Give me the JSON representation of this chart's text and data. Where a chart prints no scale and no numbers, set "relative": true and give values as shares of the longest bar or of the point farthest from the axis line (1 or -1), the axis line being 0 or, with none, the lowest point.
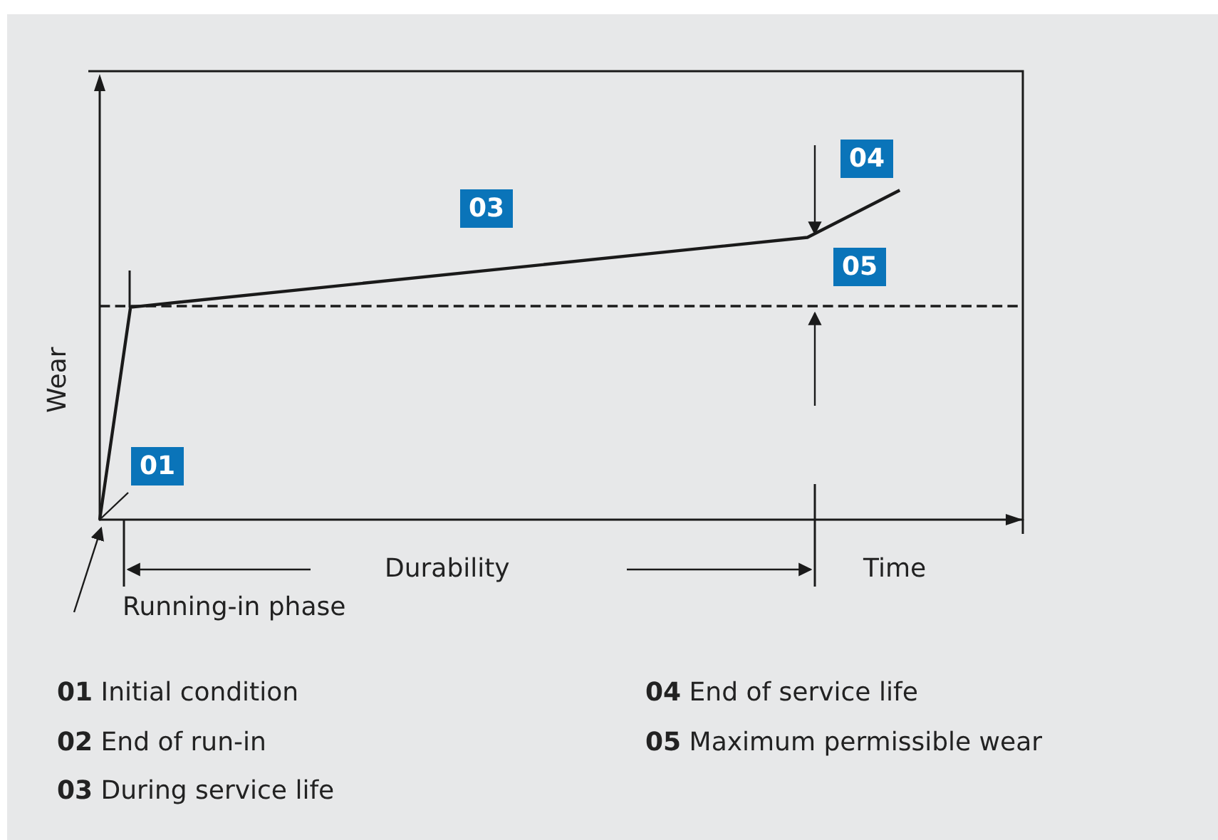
{
  "chart_data": {
    "type": "line",
    "relative": true,
    "xlabel": "Time",
    "ylabel": "Wear",
    "categories": [
      null,
      null,
      null,
      null,
      null,
      null,
      null,
      null,
      null,
      null,
      null,
      null,
      null,
      null,
      null,
      null,
      null,
      null,
      null,
      null,
      null,
      null,
      null,
      null,
      null,
      null,
      null,
      null,
      null,
      null,
      null
    ],
    "series": [
      {
        "color": "#1a1a1a",
        "values": [
          0,
          0.645,
          null,
          null,
          null,
          null,
          null,
          null,
          null,
          null,
          null,
          null,
          null,
          null,
          null,
          null,
          null,
          null,
          null,
          null,
          null,
          null,
          null,
          0.857,
          null,
          null,
          1,
          null,
          null,
          null,
          null
        ]
      }
    ],
    "ref_lines": [
      {
        "axis": "y",
        "value": 0.645,
        "line_style": "dashed",
        "color": "#1a1a1a"
      }
    ],
    "marker": "none",
    "grid": false,
    "annotations": [
      "01",
      "03",
      "04",
      "05",
      "Durability",
      "Running-in phase",
      "01 Initial condition",
      "02 End of run-in",
      "03 During service life",
      "04 End of service life",
      "05 Maximum permissible wear"
    ]
  }
}
